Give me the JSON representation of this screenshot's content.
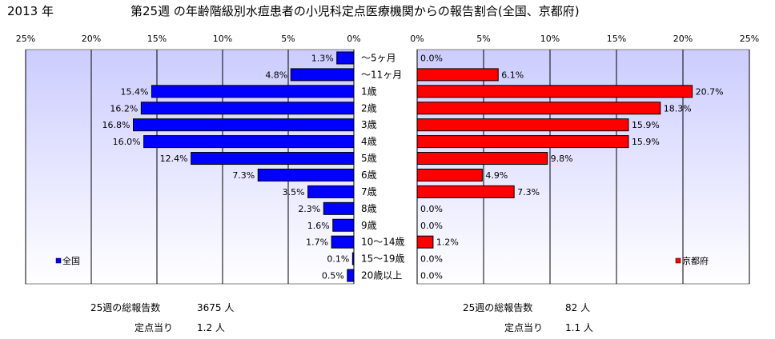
{
  "year_label": "2013 年",
  "title": "第25週 の年齢階級別水痘患者の小児科定点医療機関からの報告割合(全国、京都府)",
  "chart_data": [
    {
      "type": "bar",
      "orientation": "horizontal",
      "direction": "right-to-left",
      "series": [
        {
          "name": "全国",
          "color": "#0000ff",
          "values": [
            1.3,
            4.8,
            15.4,
            16.2,
            16.8,
            16.0,
            12.4,
            7.3,
            3.5,
            2.3,
            1.6,
            1.7,
            0.1,
            0.5
          ],
          "value_labels": [
            "1.3%",
            "4.8%",
            "15.4%",
            "16.2%",
            "16.8%",
            "16.0%",
            "12.4%",
            "7.3%",
            "3.5%",
            "2.3%",
            "1.6%",
            "1.7%",
            "0.1%",
            "0.5%"
          ]
        }
      ],
      "xlim": [
        0,
        25
      ],
      "ticks": [
        "25%",
        "20%",
        "15%",
        "10%",
        "5%",
        "0%"
      ],
      "legend_position": "bottom-left",
      "grid": true
    },
    {
      "type": "bar",
      "orientation": "horizontal",
      "direction": "left-to-right",
      "series": [
        {
          "name": "京都府",
          "color": "#ff0000",
          "values": [
            0.0,
            6.1,
            20.7,
            18.3,
            15.9,
            15.9,
            9.8,
            4.9,
            7.3,
            0.0,
            0.0,
            1.2,
            0.0,
            0.0
          ],
          "value_labels": [
            "0.0%",
            "6.1%",
            "20.7%",
            "18.3%",
            "15.9%",
            "15.9%",
            "9.8%",
            "4.9%",
            "7.3%",
            "0.0%",
            "0.0%",
            "1.2%",
            "0.0%",
            "0.0%"
          ]
        }
      ],
      "xlim": [
        0,
        25
      ],
      "ticks": [
        "0%",
        "5%",
        "10%",
        "15%",
        "20%",
        "25%"
      ],
      "legend_position": "bottom-right",
      "grid": true
    }
  ],
  "categories": [
    "～5ヶ月",
    "～11ヶ月",
    "1歳",
    "2歳",
    "3歳",
    "4歳",
    "5歳",
    "6歳",
    "7歳",
    "8歳",
    "9歳",
    "10～14歳",
    "15～19歳",
    "20歳以上"
  ],
  "footer": {
    "left": {
      "total_label": "25週の総報告数",
      "total_value": "3675 人",
      "per_label": "定点当り",
      "per_value": "1.2 人"
    },
    "right": {
      "total_label": "25週の総報告数",
      "total_value": "82 人",
      "per_label": "定点当り",
      "per_value": "1.1 人"
    }
  },
  "colors": {
    "plot_bg_top": "#ccccff",
    "plot_bg_bottom": "#ffffff",
    "grid": "#000000",
    "left_bar": "#0000ff",
    "right_bar": "#ff0000"
  }
}
